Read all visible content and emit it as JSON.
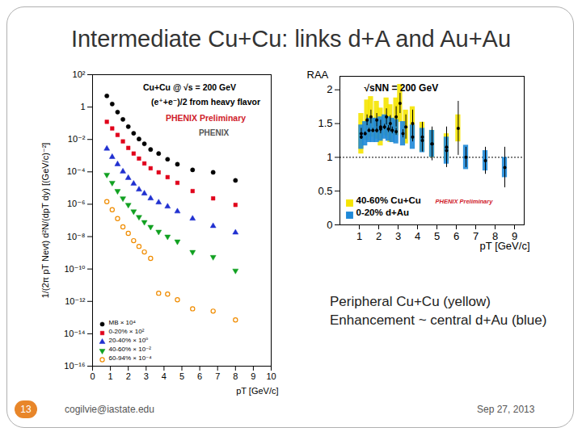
{
  "slide": {
    "title": "Intermediate Cu+Cu: links d+A and Au+Au",
    "notes": [
      "Peripheral Cu+Cu (yellow)",
      "Enhancement ~ central d+Au (blue)"
    ],
    "page": "13",
    "email": "cogilvie@iastate.edu",
    "date": "Sep 27, 2013"
  },
  "chart_data": [
    {
      "type": "scatter",
      "log": "y",
      "legend": "bottom-left",
      "x_label": "pT [GeV/c]",
      "y_label": "1/(2π pT Nevt) d²N/(dpT dy) [(GeV/c)⁻²]",
      "annotations": [
        {
          "text": "Cu+Cu @ √s = 200 GeV",
          "color": "#000000"
        },
        {
          "text": "(e⁺+e⁻)/2 from heavy flavor",
          "color": "#000000"
        },
        {
          "text": "PHENIX Preliminary",
          "color": "#d0202a"
        },
        {
          "text": "PHENIX",
          "color": "#555555"
        }
      ],
      "xlim": [
        0,
        10
      ],
      "xticks": [
        0,
        1,
        2,
        3,
        4,
        5,
        6,
        7,
        8,
        9,
        10
      ],
      "ylim": [
        1e-16,
        100
      ],
      "yticks": [
        {
          "value": 1e-16,
          "label": "10⁻¹⁶"
        },
        {
          "value": 1e-14,
          "label": "10⁻¹⁴"
        },
        {
          "value": 1e-12,
          "label": "10⁻¹²"
        },
        {
          "value": 1e-10,
          "label": "10⁻¹⁰"
        },
        {
          "value": 1e-08,
          "label": "10⁻⁸"
        },
        {
          "value": 1e-06,
          "label": "10⁻⁶"
        },
        {
          "value": 0.0001,
          "label": "10⁻⁴"
        },
        {
          "value": 0.01,
          "label": "10⁻²"
        },
        1,
        {
          "value": 100,
          "label": "10²"
        }
      ],
      "x": [
        0.8,
        1.1,
        1.4,
        1.7,
        2.0,
        2.3,
        2.6,
        2.9,
        3.25,
        3.7,
        4.2,
        4.75,
        5.6,
        6.75,
        8.0
      ],
      "series": [
        {
          "name": "MB × 10⁴",
          "color": "#000000",
          "marker": "circle",
          "values": [
            4.9,
            1.55,
            0.49,
            0.174,
            0.062,
            0.024,
            0.0107,
            0.0054,
            0.0024,
            0.00135,
            0.0006,
            0.000295,
            0.000132,
            9.3e-05,
            2.95e-05
          ]
        },
        {
          "name": "0-20% × 10²",
          "color": "#e0001a",
          "marker": "square",
          "values": [
            0.123,
            0.048,
            0.019,
            0.0076,
            0.003,
            0.00135,
            0.00066,
            0.00033,
            0.000166,
            9.3e-05,
            4.7e-05,
            2.1e-05,
            6.5e-06,
            2.3e-06,
            9.1e-07
          ]
        },
        {
          "name": "20-40% × 10⁰",
          "color": "#2030d0",
          "marker": "triangle",
          "values": [
            0.0027,
            0.00083,
            0.000295,
            0.000105,
            4.2e-05,
            1.86e-05,
            8.1e-06,
            4.6e-06,
            2.3e-06,
            1.29e-06,
            7.2e-07,
            3.6e-07,
            1.29e-07,
            4.5e-08,
            1.78e-08
          ]
        },
        {
          "name": "40-60% × 10⁻²",
          "color": "#10a020",
          "marker": "triangle-down",
          "values": [
            6.6e-05,
            2.1e-05,
            6.5e-06,
            2.3e-06,
            9.1e-07,
            3.6e-07,
            1.62e-07,
            7.9e-08,
            4e-08,
            2e-08,
            1e-08,
            5e-09,
            1.12e-09,
            5.5e-10,
            7.9e-11
          ]
        },
        {
          "name": "60-94% × 10⁻⁴",
          "color": "#f08c00",
          "marker": "circle-open",
          "values": [
            1.45e-06,
            4.6e-07,
            1.29e-07,
            4e-08,
            1.58e-08,
            5.6e-09,
            2.5e-09,
            1.12e-09,
            4.5e-10,
            3.2e-12,
            2.8e-12,
            1.26e-12,
            3.5e-13,
            2.5e-13,
            7.1e-14
          ]
        }
      ]
    },
    {
      "type": "scatter",
      "legend": "bottom-left",
      "x_label": "pT [GeV/c]",
      "y_label": "RAA",
      "annotations": [
        {
          "text": "√sNN = 200 GeV",
          "color": "#000000"
        },
        {
          "text": "PHENIX Preliminary",
          "color": "#d0202a"
        }
      ],
      "xlim": [
        0,
        9.5
      ],
      "xticks": [
        1,
        2,
        3,
        4,
        5,
        6,
        7,
        8,
        9
      ],
      "ylim": [
        0,
        2.2
      ],
      "yticks": [
        0,
        0.5,
        1,
        1.5,
        2
      ],
      "hline": 1,
      "series": [
        {
          "name": "40-60% Cu+Cu",
          "color": "#f5e400",
          "marker": "circle",
          "x": [
            1.1,
            1.4,
            1.6,
            1.9,
            2.1,
            2.4,
            2.6,
            2.9,
            3.1,
            3.4,
            3.75,
            4.25,
            4.75,
            5.5,
            6.1
          ],
          "values": [
            1.35,
            1.55,
            1.6,
            1.55,
            1.45,
            1.6,
            1.5,
            1.6,
            1.8,
            1.45,
            1.5,
            1.3,
            1.2,
            1.15,
            1.43
          ],
          "errors": [
            0.08,
            0.08,
            0.1,
            0.1,
            0.1,
            0.12,
            0.12,
            0.15,
            0.15,
            0.18,
            0.2,
            0.22,
            0.25,
            0.3,
            0.4
          ],
          "sys": [
            0.3,
            0.3,
            0.3,
            0.28,
            0.28,
            0.28,
            0.28,
            0.28,
            0.28,
            0.25,
            0.25,
            0.22,
            0.2,
            0.2,
            0.2
          ]
        },
        {
          "name": "0-20% d+Au",
          "color": "#1e88d8",
          "marker": "circle",
          "x": [
            1.1,
            1.3,
            1.5,
            1.7,
            1.9,
            2.1,
            2.3,
            2.5,
            2.7,
            2.9,
            3.25,
            3.75,
            4.25,
            4.75,
            5.5,
            6.5,
            7.5,
            8.5
          ],
          "values": [
            1.3,
            1.35,
            1.4,
            1.4,
            1.4,
            1.42,
            1.45,
            1.42,
            1.4,
            1.38,
            1.35,
            1.3,
            1.25,
            1.2,
            1.1,
            1.0,
            0.95,
            0.85
          ],
          "errors": [
            0.03,
            0.03,
            0.03,
            0.03,
            0.04,
            0.04,
            0.04,
            0.05,
            0.05,
            0.05,
            0.06,
            0.07,
            0.08,
            0.1,
            0.12,
            0.15,
            0.2,
            0.3
          ],
          "sys": [
            0.18,
            0.18,
            0.18,
            0.18,
            0.18,
            0.18,
            0.18,
            0.18,
            0.18,
            0.18,
            0.18,
            0.18,
            0.18,
            0.2,
            0.2,
            0.18,
            0.15,
            0.15
          ]
        }
      ]
    }
  ]
}
